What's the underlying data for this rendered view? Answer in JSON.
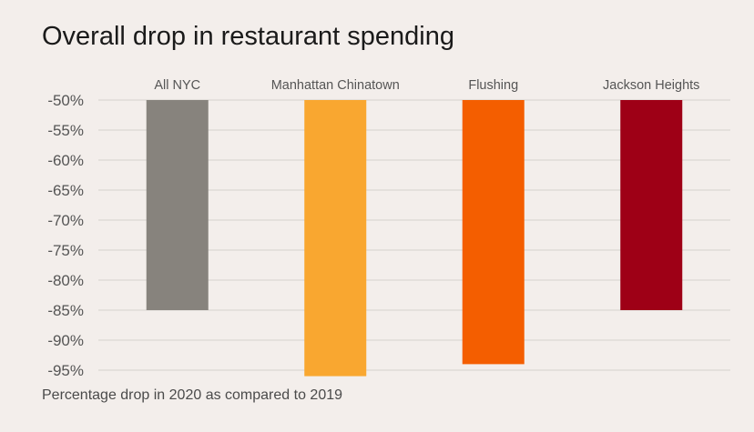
{
  "chart_data": {
    "type": "bar",
    "title": "Overall drop in restaurant spending",
    "note": "Percentage drop in 2020 as compared to 2019",
    "categories": [
      "All NYC",
      "Manhattan Chinatown",
      "Flushing",
      "Jackson Heights"
    ],
    "values": [
      -85,
      -96,
      -94,
      -85
    ],
    "colors": [
      "#87837d",
      "#f9a730",
      "#f45e00",
      "#9e0016"
    ],
    "ylim": [
      -96,
      -50
    ],
    "yticks": [
      -50,
      -55,
      -60,
      -65,
      -70,
      -75,
      -80,
      -85,
      -90,
      -95
    ],
    "ytick_labels": [
      "-50%",
      "-55%",
      "-60%",
      "-65%",
      "-70%",
      "-75%",
      "-80%",
      "-85%",
      "-90%",
      "-95%"
    ],
    "grid": true,
    "category_labels_position": "top"
  }
}
